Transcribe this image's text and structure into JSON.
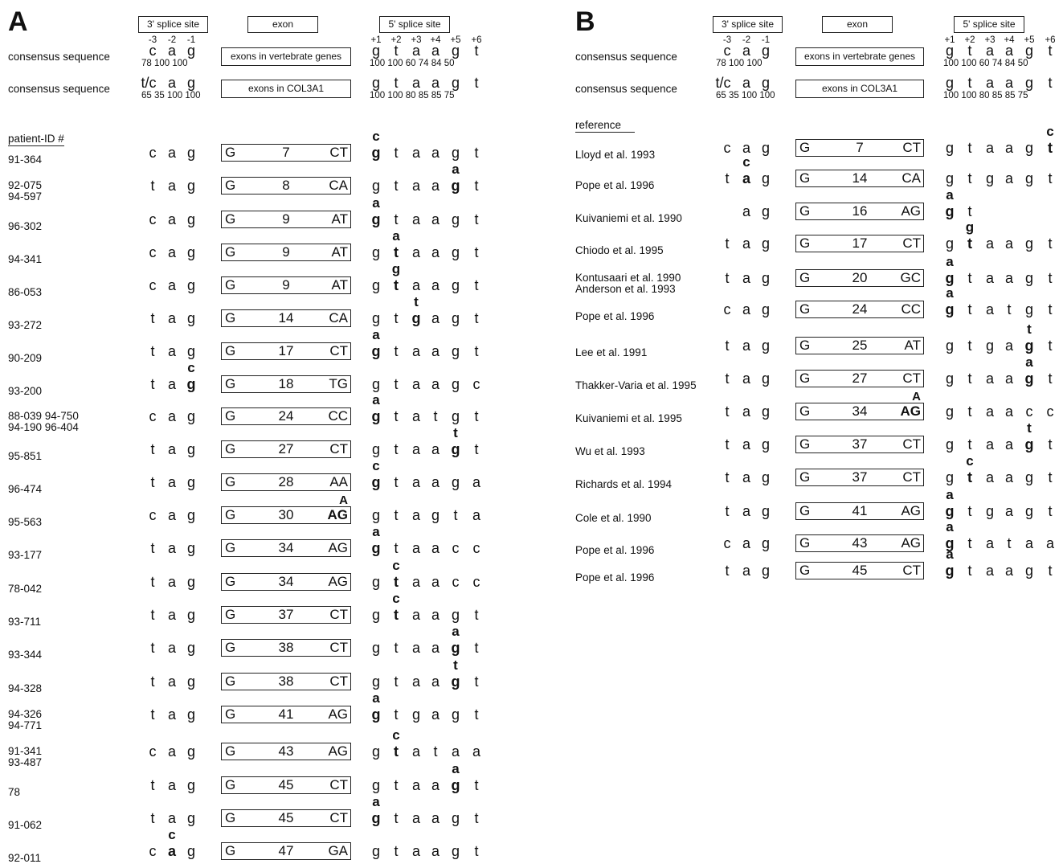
{
  "panelA": {
    "letter": "A",
    "headers": {
      "splice3": "3' splice site",
      "exon": "exon",
      "splice5": "5' splice site"
    },
    "positions3": [
      "-3",
      "-2",
      "-1"
    ],
    "positions5": [
      "+1",
      "+2",
      "+3",
      "+4",
      "+5",
      "+6"
    ],
    "consensus": [
      {
        "label": "consensus sequence",
        "seq3": [
          "c",
          "a",
          "g"
        ],
        "nums3": [
          "78",
          "100",
          "100"
        ],
        "box": "exons in vertebrate genes",
        "seq5": [
          "g",
          "t",
          "a",
          "a",
          "g",
          "t"
        ],
        "nums5": [
          "100",
          "100",
          "60",
          "74",
          "84",
          "50"
        ]
      },
      {
        "label": "consensus sequence",
        "seq3": [
          "t/c",
          "a",
          "g"
        ],
        "nums3": [
          "65",
          "35",
          "100",
          "100"
        ],
        "box": "exons in COL3A1",
        "seq5": [
          "g",
          "t",
          "a",
          "a",
          "g",
          "t"
        ],
        "nums5": [
          "100",
          "100",
          "80",
          "85",
          "85",
          "75"
        ]
      }
    ],
    "list_title": "patient-ID #",
    "rows": [
      {
        "ids": [
          "91-364"
        ],
        "seq3": [
          "c",
          "a",
          "g"
        ],
        "exon": "7",
        "end": "CT",
        "seq5": [
          "g",
          "t",
          "a",
          "a",
          "g",
          "t"
        ],
        "mut3": null,
        "mutEnd": null,
        "mut5": {
          "pos": 0,
          "base": "c"
        }
      },
      {
        "ids": [
          "92-075",
          "94-597"
        ],
        "seq3": [
          "t",
          "a",
          "g"
        ],
        "exon": "8",
        "end": "CA",
        "seq5": [
          "g",
          "t",
          "a",
          "a",
          "g",
          "t"
        ],
        "mut3": null,
        "mutEnd": null,
        "mut5": {
          "pos": 4,
          "base": "a"
        }
      },
      {
        "ids": [
          "96-302"
        ],
        "seq3": [
          "c",
          "a",
          "g"
        ],
        "exon": "9",
        "end": "AT",
        "seq5": [
          "g",
          "t",
          "a",
          "a",
          "g",
          "t"
        ],
        "mut3": null,
        "mutEnd": null,
        "mut5": {
          "pos": 0,
          "base": "a"
        }
      },
      {
        "ids": [
          "94-341"
        ],
        "seq3": [
          "c",
          "a",
          "g"
        ],
        "exon": "9",
        "end": "AT",
        "seq5": [
          "g",
          "t",
          "a",
          "a",
          "g",
          "t"
        ],
        "mut3": null,
        "mutEnd": null,
        "mut5": {
          "pos": 1,
          "base": "a"
        }
      },
      {
        "ids": [
          "86-053"
        ],
        "seq3": [
          "c",
          "a",
          "g"
        ],
        "exon": "9",
        "end": "AT",
        "seq5": [
          "g",
          "t",
          "a",
          "a",
          "g",
          "t"
        ],
        "mut3": null,
        "mutEnd": null,
        "mut5": {
          "pos": 1,
          "base": "g"
        }
      },
      {
        "ids": [
          "93-272"
        ],
        "seq3": [
          "t",
          "a",
          "g"
        ],
        "exon": "14",
        "end": "CA",
        "seq5": [
          "g",
          "t",
          "g",
          "a",
          "g",
          "t"
        ],
        "mut3": null,
        "mutEnd": null,
        "mut5": {
          "pos": 2,
          "base": "t"
        }
      },
      {
        "ids": [
          "90-209"
        ],
        "seq3": [
          "t",
          "a",
          "g"
        ],
        "exon": "17",
        "end": "CT",
        "seq5": [
          "g",
          "t",
          "a",
          "a",
          "g",
          "t"
        ],
        "mut3": null,
        "mutEnd": null,
        "mut5": {
          "pos": 0,
          "base": "a"
        }
      },
      {
        "ids": [
          "93-200"
        ],
        "seq3": [
          "t",
          "a",
          "g"
        ],
        "exon": "18",
        "end": "TG",
        "seq5": [
          "g",
          "t",
          "a",
          "a",
          "g",
          "c"
        ],
        "mut3": {
          "pos": 2,
          "base": "c"
        },
        "mutEnd": null,
        "mut5": null
      },
      {
        "ids": [
          "88-039 94-750",
          "94-190 96-404"
        ],
        "seq3": [
          "c",
          "a",
          "g"
        ],
        "exon": "24",
        "end": "CC",
        "seq5": [
          "g",
          "t",
          "a",
          "t",
          "g",
          "t"
        ],
        "mut3": null,
        "mutEnd": null,
        "mut5": {
          "pos": 0,
          "base": "a"
        }
      },
      {
        "ids": [
          "95-851"
        ],
        "seq3": [
          "t",
          "a",
          "g"
        ],
        "exon": "27",
        "end": "CT",
        "seq5": [
          "g",
          "t",
          "a",
          "a",
          "g",
          "t"
        ],
        "mut3": null,
        "mutEnd": null,
        "mut5": {
          "pos": 4,
          "base": "t"
        }
      },
      {
        "ids": [
          "96-474"
        ],
        "seq3": [
          "t",
          "a",
          "g"
        ],
        "exon": "28",
        "end": "AA",
        "seq5": [
          "g",
          "t",
          "a",
          "a",
          "g",
          "a"
        ],
        "mut3": null,
        "mutEnd": null,
        "mut5": {
          "pos": 0,
          "base": "c"
        }
      },
      {
        "ids": [
          "95-563"
        ],
        "seq3": [
          "c",
          "a",
          "g"
        ],
        "exon": "30",
        "end": "AG",
        "seq5": [
          "g",
          "t",
          "a",
          "g",
          "t",
          "a"
        ],
        "mut3": null,
        "mutEnd": "A",
        "mut5": null
      },
      {
        "ids": [
          "93-177"
        ],
        "seq3": [
          "t",
          "a",
          "g"
        ],
        "exon": "34",
        "end": "AG",
        "seq5": [
          "g",
          "t",
          "a",
          "a",
          "c",
          "c"
        ],
        "mut3": null,
        "mutEnd": null,
        "mut5": {
          "pos": 0,
          "base": "a"
        }
      },
      {
        "ids": [
          "78-042"
        ],
        "seq3": [
          "t",
          "a",
          "g"
        ],
        "exon": "34",
        "end": "AG",
        "seq5": [
          "g",
          "t",
          "a",
          "a",
          "c",
          "c"
        ],
        "mut3": null,
        "mutEnd": null,
        "mut5": {
          "pos": 1,
          "base": "c"
        }
      },
      {
        "ids": [
          "93-711"
        ],
        "seq3": [
          "t",
          "a",
          "g"
        ],
        "exon": "37",
        "end": "CT",
        "seq5": [
          "g",
          "t",
          "a",
          "a",
          "g",
          "t"
        ],
        "mut3": null,
        "mutEnd": null,
        "mut5": {
          "pos": 1,
          "base": "c"
        }
      },
      {
        "ids": [
          "93-344"
        ],
        "seq3": [
          "t",
          "a",
          "g"
        ],
        "exon": "38",
        "end": "CT",
        "seq5": [
          "g",
          "t",
          "a",
          "a",
          "g",
          "t"
        ],
        "mut3": null,
        "mutEnd": null,
        "mut5": {
          "pos": 4,
          "base": "a"
        }
      },
      {
        "ids": [
          "94-328"
        ],
        "seq3": [
          "t",
          "a",
          "g"
        ],
        "exon": "38",
        "end": "CT",
        "seq5": [
          "g",
          "t",
          "a",
          "a",
          "g",
          "t"
        ],
        "mut3": null,
        "mutEnd": null,
        "mut5": {
          "pos": 4,
          "base": "t"
        }
      },
      {
        "ids": [
          "94-326",
          "94-771"
        ],
        "seq3": [
          "t",
          "a",
          "g"
        ],
        "exon": "41",
        "end": "AG",
        "seq5": [
          "g",
          "t",
          "g",
          "a",
          "g",
          "t"
        ],
        "mut3": null,
        "mutEnd": null,
        "mut5": {
          "pos": 0,
          "base": "a"
        }
      },
      {
        "ids": [
          "91-341",
          "93-487"
        ],
        "seq3": [
          "c",
          "a",
          "g"
        ],
        "exon": "43",
        "end": "AG",
        "seq5": [
          "g",
          "t",
          "a",
          "t",
          "a",
          "a"
        ],
        "mut3": null,
        "mutEnd": null,
        "mut5": {
          "pos": 1,
          "base": "c"
        }
      },
      {
        "ids": [
          "78"
        ],
        "seq3": [
          "t",
          "a",
          "g"
        ],
        "exon": "45",
        "end": "CT",
        "seq5": [
          "g",
          "t",
          "a",
          "a",
          "g",
          "t"
        ],
        "mut3": null,
        "mutEnd": null,
        "mut5": {
          "pos": 4,
          "base": "a"
        }
      },
      {
        "ids": [
          "91-062"
        ],
        "seq3": [
          "t",
          "a",
          "g"
        ],
        "exon": "45",
        "end": "CT",
        "seq5": [
          "g",
          "t",
          "a",
          "a",
          "g",
          "t"
        ],
        "mut3": null,
        "mutEnd": null,
        "mut5": {
          "pos": 0,
          "base": "a"
        }
      },
      {
        "ids": [
          "92-011"
        ],
        "seq3": [
          "c",
          "a",
          "g"
        ],
        "exon": "47",
        "end": "GA",
        "seq5": [
          "g",
          "t",
          "a",
          "a",
          "g",
          "t"
        ],
        "mut3": {
          "pos": 1,
          "base": "c"
        },
        "mutEnd": null,
        "mut5": null
      }
    ]
  },
  "panelB": {
    "letter": "B",
    "headers": {
      "splice3": "3' splice site",
      "exon": "exon",
      "splice5": "5' splice site"
    },
    "positions3": [
      "-3",
      "-2",
      "-1"
    ],
    "positions5": [
      "+1",
      "+2",
      "+3",
      "+4",
      "+5",
      "+6"
    ],
    "consensus": [
      {
        "label": "consensus sequence",
        "seq3": [
          "c",
          "a",
          "g"
        ],
        "nums3": [
          "78",
          "100",
          "100"
        ],
        "box": "exons in vertebrate genes",
        "seq5": [
          "g",
          "t",
          "a",
          "a",
          "g",
          "t"
        ],
        "nums5": [
          "100",
          "100",
          "60",
          "74",
          "84",
          "50"
        ]
      },
      {
        "label": "consensus sequence",
        "seq3": [
          "t/c",
          "a",
          "g"
        ],
        "nums3": [
          "65",
          "35",
          "100",
          "100"
        ],
        "box": "exons in COL3A1",
        "seq5": [
          "g",
          "t",
          "a",
          "a",
          "g",
          "t"
        ],
        "nums5": [
          "100",
          "100",
          "80",
          "85",
          "85",
          "75"
        ]
      }
    ],
    "list_title": "reference",
    "rows": [
      {
        "ids": [
          "Lloyd et al. 1993"
        ],
        "seq3": [
          "c",
          "a",
          "g"
        ],
        "exon": "7",
        "end": "CT",
        "seq5": [
          "g",
          "t",
          "a",
          "a",
          "g",
          "t"
        ],
        "mut3": null,
        "mutEnd": null,
        "mut5": {
          "pos": 5,
          "base": "c"
        }
      },
      {
        "ids": [
          "Pope et al. 1996"
        ],
        "seq3": [
          "t",
          "a",
          "g"
        ],
        "exon": "14",
        "end": "CA",
        "seq5": [
          "g",
          "t",
          "g",
          "a",
          "g",
          "t"
        ],
        "mut3": {
          "pos": 1,
          "base": "c"
        },
        "mutEnd": null,
        "mut5": null
      },
      {
        "ids": [
          "Kuivaniemi et al. 1990"
        ],
        "seq3": [
          "",
          "a",
          "g"
        ],
        "exon": "16",
        "end": "AG",
        "seq5": [
          "g",
          "t",
          "",
          "",
          "",
          ""
        ],
        "mut3": null,
        "mutEnd": null,
        "mut5": {
          "pos": 0,
          "base": "a"
        }
      },
      {
        "ids": [
          "Chiodo et al. 1995"
        ],
        "seq3": [
          "t",
          "a",
          "g"
        ],
        "exon": "17",
        "end": "CT",
        "seq5": [
          "g",
          "t",
          "a",
          "a",
          "g",
          "t"
        ],
        "mut3": null,
        "mutEnd": null,
        "mut5": {
          "pos": 1,
          "base": "g"
        }
      },
      {
        "ids": [
          "Kontusaari et al. 1990",
          "Anderson et al. 1993"
        ],
        "seq3": [
          "t",
          "a",
          "g"
        ],
        "exon": "20",
        "end": "GC",
        "seq5": [
          "g",
          "t",
          "a",
          "a",
          "g",
          "t"
        ],
        "mut3": null,
        "mutEnd": null,
        "mut5": {
          "pos": 0,
          "base": "a"
        }
      },
      {
        "ids": [
          "Pope et al. 1996"
        ],
        "seq3": [
          "c",
          "a",
          "g"
        ],
        "exon": "24",
        "end": "CC",
        "seq5": [
          "g",
          "t",
          "a",
          "t",
          "g",
          "t"
        ],
        "mut3": null,
        "mutEnd": null,
        "mut5": {
          "pos": 0,
          "base": "a"
        }
      },
      {
        "ids": [
          "Lee et al. 1991"
        ],
        "seq3": [
          "t",
          "a",
          "g"
        ],
        "exon": "25",
        "end": "AT",
        "seq5": [
          "g",
          "t",
          "g",
          "a",
          "g",
          "t"
        ],
        "mut3": null,
        "mutEnd": null,
        "mut5": {
          "pos": 4,
          "base": "t"
        }
      },
      {
        "ids": [
          "Thakker-Varia et al. 1995"
        ],
        "seq3": [
          "t",
          "a",
          "g"
        ],
        "exon": "27",
        "end": "CT",
        "seq5": [
          "g",
          "t",
          "a",
          "a",
          "g",
          "t"
        ],
        "mut3": null,
        "mutEnd": null,
        "mut5": {
          "pos": 4,
          "base": "a"
        }
      },
      {
        "ids": [
          "Kuivaniemi et al. 1995"
        ],
        "seq3": [
          "t",
          "a",
          "g"
        ],
        "exon": "34",
        "end": "AG",
        "seq5": [
          "g",
          "t",
          "a",
          "a",
          "c",
          "c"
        ],
        "mut3": null,
        "mutEnd": "A",
        "mut5": null
      },
      {
        "ids": [
          "Wu et al. 1993"
        ],
        "seq3": [
          "t",
          "a",
          "g"
        ],
        "exon": "37",
        "end": "CT",
        "seq5": [
          "g",
          "t",
          "a",
          "a",
          "g",
          "t"
        ],
        "mut3": null,
        "mutEnd": null,
        "mut5": {
          "pos": 4,
          "base": "t"
        }
      },
      {
        "ids": [
          "Richards et al. 1994"
        ],
        "seq3": [
          "t",
          "a",
          "g"
        ],
        "exon": "37",
        "end": "CT",
        "seq5": [
          "g",
          "t",
          "a",
          "a",
          "g",
          "t"
        ],
        "mut3": null,
        "mutEnd": null,
        "mut5": {
          "pos": 1,
          "base": "c"
        }
      },
      {
        "ids": [
          "Cole et al. 1990"
        ],
        "seq3": [
          "t",
          "a",
          "g"
        ],
        "exon": "41",
        "end": "AG",
        "seq5": [
          "g",
          "t",
          "g",
          "a",
          "g",
          "t"
        ],
        "mut3": null,
        "mutEnd": null,
        "mut5": {
          "pos": 0,
          "base": "a"
        }
      },
      {
        "ids": [
          "Pope et al. 1996"
        ],
        "seq3": [
          "c",
          "a",
          "g"
        ],
        "exon": "43",
        "end": "AG",
        "seq5": [
          "g",
          "t",
          "a",
          "t",
          "a",
          "a"
        ],
        "mut3": null,
        "mutEnd": null,
        "mut5": {
          "pos": 0,
          "base": "a"
        }
      },
      {
        "ids": [
          "Pope et al. 1996"
        ],
        "seq3": [
          "t",
          "a",
          "g"
        ],
        "exon": "45",
        "end": "CT",
        "seq5": [
          "g",
          "t",
          "a",
          "a",
          "g",
          "t"
        ],
        "mut3": null,
        "mutEnd": null,
        "mut5": {
          "pos": 0,
          "base": "a"
        }
      }
    ]
  }
}
